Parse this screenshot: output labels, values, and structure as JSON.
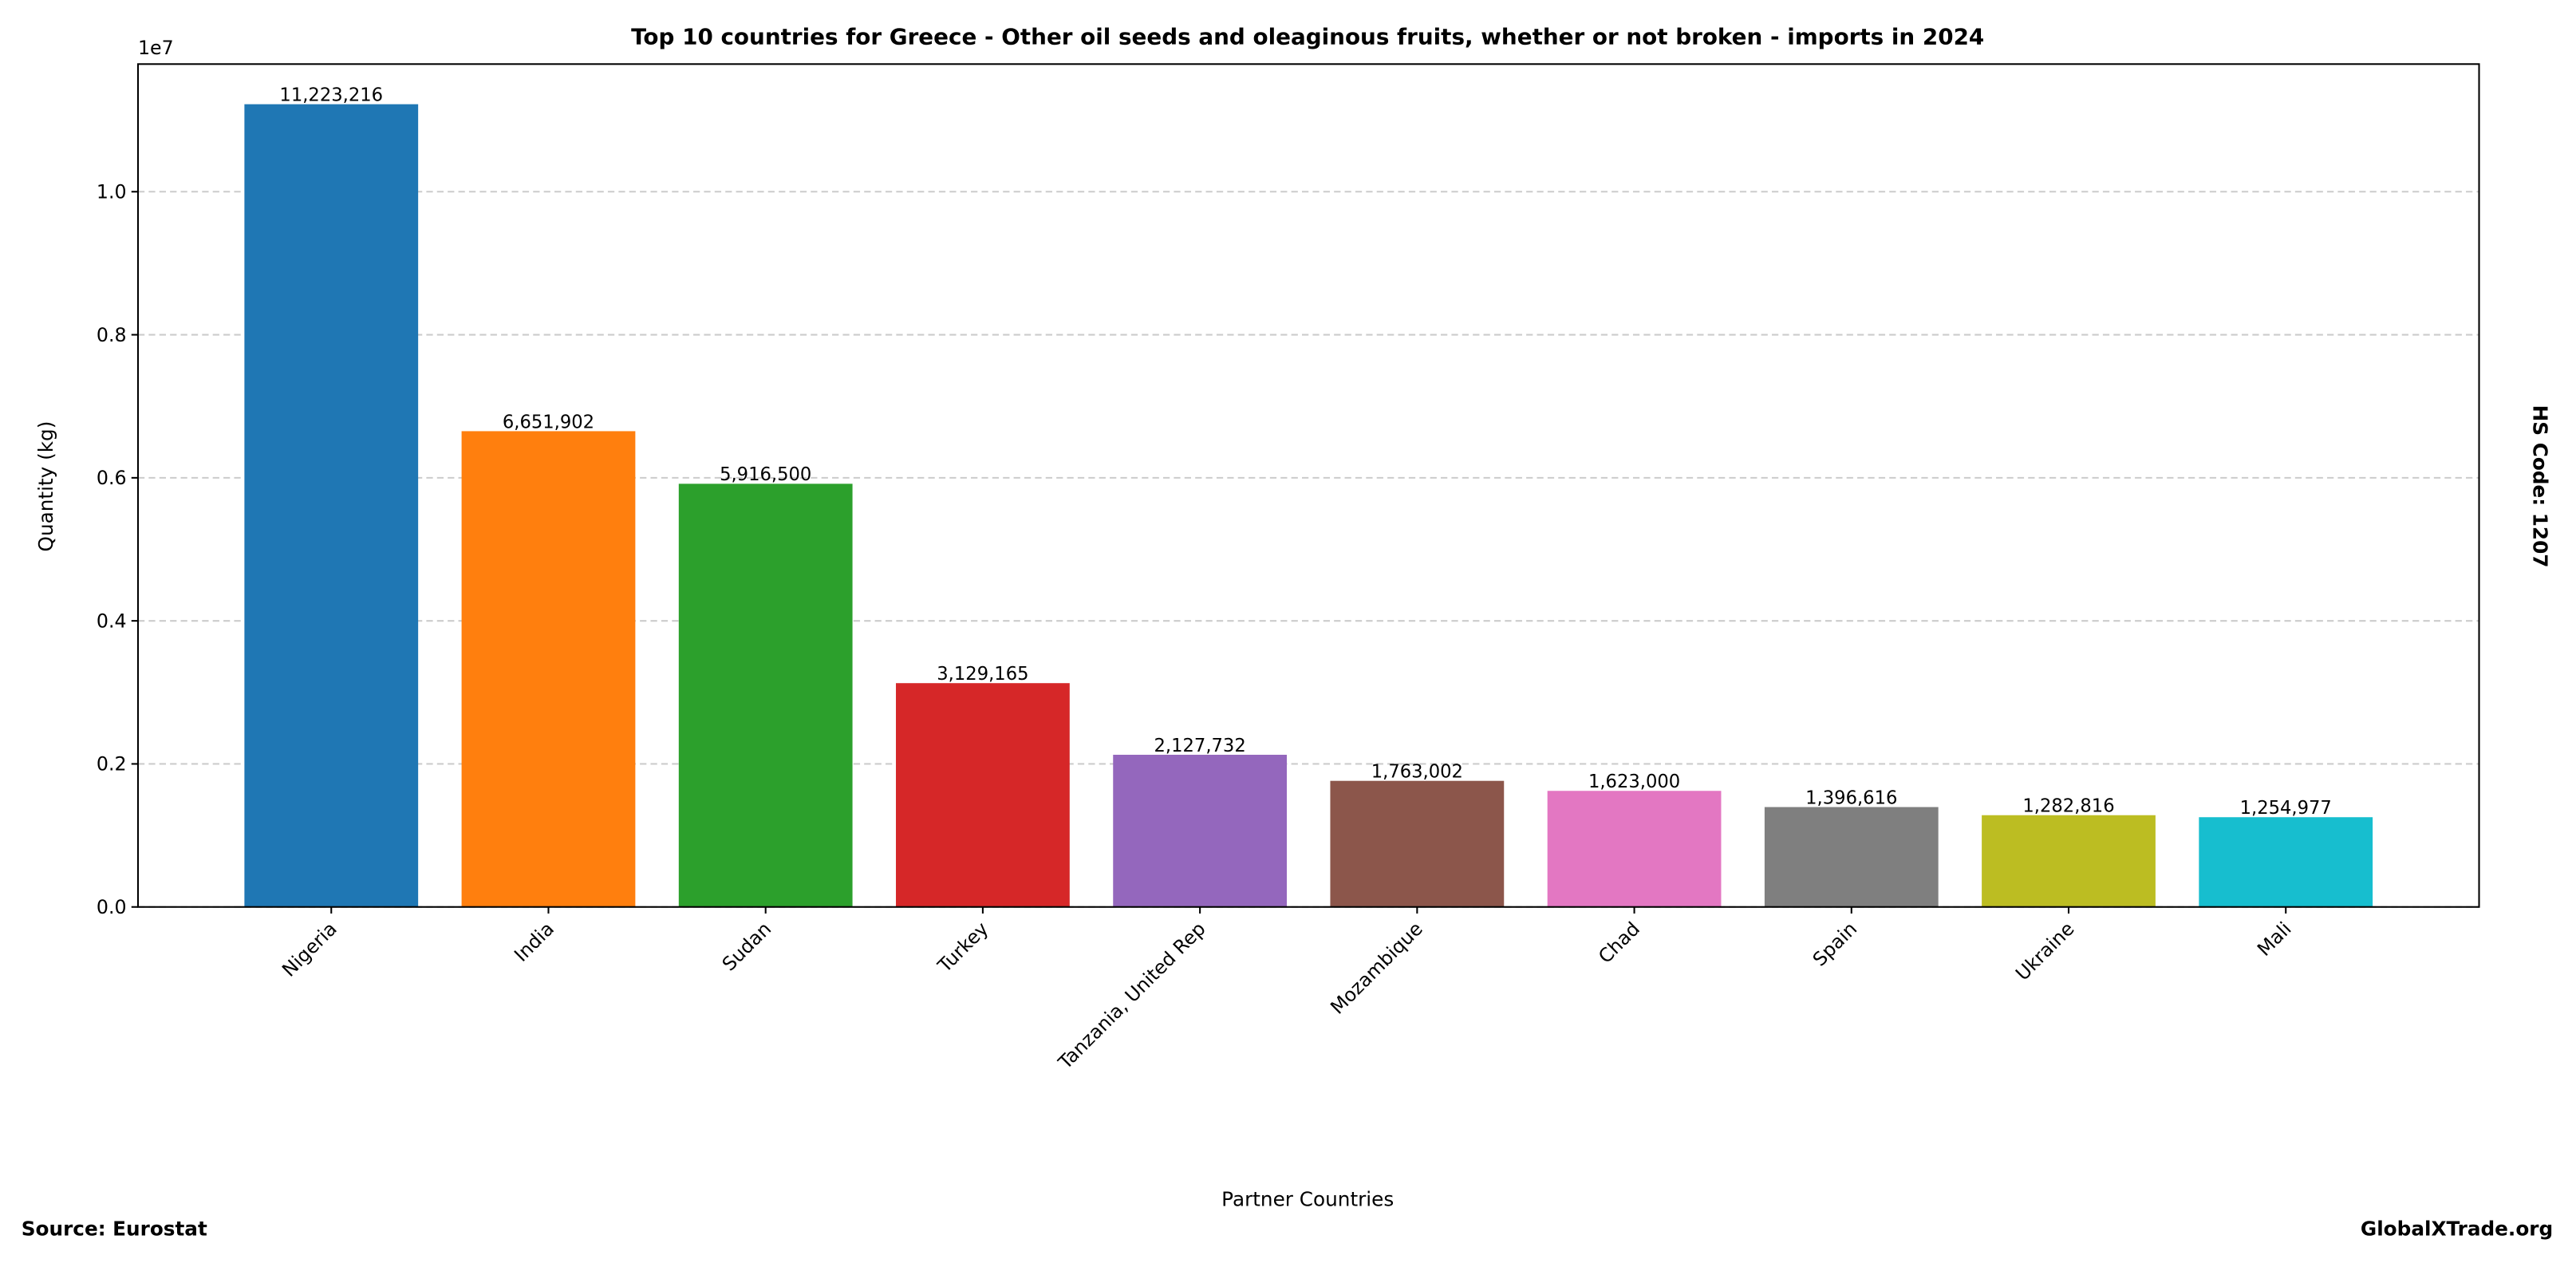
{
  "chart_data": {
    "type": "bar",
    "title": "Top 10 countries for Greece - Other oil seeds and oleaginous fruits, whether or not broken - imports in 2024",
    "xlabel": "Partner Countries",
    "ylabel": "Quantity (kg)",
    "y_offset_label": "1e7",
    "categories": [
      "Nigeria",
      "India",
      "Sudan",
      "Turkey",
      "Tanzania, United Rep",
      "Mozambique",
      "Chad",
      "Spain",
      "Ukraine",
      "Mali"
    ],
    "values": [
      11223216,
      6651902,
      5916500,
      3129165,
      2127732,
      1763002,
      1623000,
      1396616,
      1282816,
      1254977
    ],
    "value_labels": [
      "11,223,216",
      "6,651,902",
      "5,916,500",
      "3,129,165",
      "2,127,732",
      "1,763,002",
      "1,623,000",
      "1,396,616",
      "1,282,816",
      "1,254,977"
    ],
    "colors": [
      "#1f77b4",
      "#ff7f0e",
      "#2ca02c",
      "#d62728",
      "#9467bd",
      "#8c564b",
      "#e377c2",
      "#7f7f7f",
      "#bcbd22",
      "#17becf"
    ],
    "ylim": [
      0,
      11784377
    ],
    "yticks": [
      0,
      2000000,
      4000000,
      6000000,
      8000000,
      10000000
    ],
    "ytick_labels": [
      "0.0",
      "0.2",
      "0.4",
      "0.6",
      "0.8",
      "1.0"
    ],
    "grid": "y-dashed",
    "legend": "none"
  },
  "annotations": {
    "source": "Source: Eurostat",
    "brand": "GlobalXTrade.org",
    "hs_code": "HS Code: 1207"
  }
}
